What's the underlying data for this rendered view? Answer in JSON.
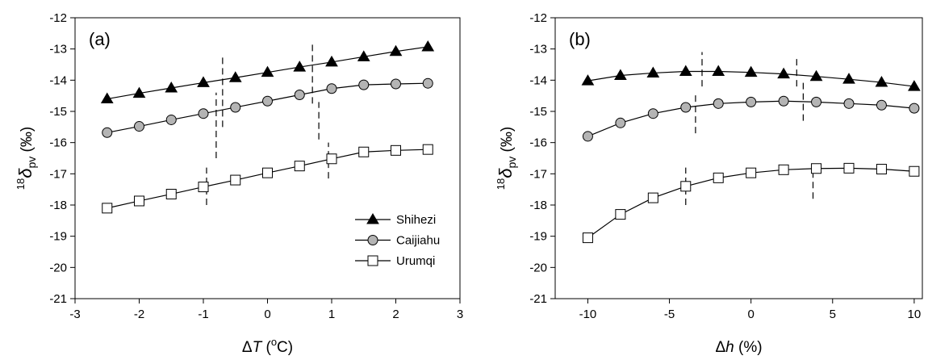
{
  "chart_data": [
    {
      "type": "line",
      "panel_label": "(a)",
      "xlabel": {
        "prefix": "Δ",
        "var": "T",
        "suffix": " (",
        "sup": "o",
        "unit": "C)"
      },
      "ylabel": {
        "sup": "18",
        "sym": "δ",
        "sub": "pv",
        "unit": " (‰)"
      },
      "xlim": [
        -3,
        3
      ],
      "ylim": [
        -21,
        -12
      ],
      "xticks": [
        -3,
        -2,
        -1,
        0,
        1,
        2,
        3
      ],
      "xtick_labels": [
        "-3",
        "-2",
        "-1",
        "0",
        "1",
        "2",
        "3"
      ],
      "yticks": [
        -21,
        -20,
        -19,
        -18,
        -17,
        -16,
        -15,
        -14,
        -13,
        -12
      ],
      "ytick_labels": [
        "-21",
        "-20",
        "-19",
        "-18",
        "-17",
        "-16",
        "-15",
        "-14",
        "-13",
        "-12"
      ],
      "grid": false,
      "legend": "lower-right",
      "x": [
        -2.5,
        -2,
        -1.5,
        -1,
        -0.5,
        0,
        0.5,
        1,
        1.5,
        2,
        2.5
      ],
      "series": [
        {
          "name": "Shihezi",
          "marker": "triangle",
          "values": [
            -14.6,
            -14.42,
            -14.25,
            -14.08,
            -13.92,
            -13.75,
            -13.58,
            -13.42,
            -13.25,
            -13.08,
            -12.93
          ]
        },
        {
          "name": "Caijiahu",
          "marker": "circle",
          "values": [
            -15.68,
            -15.48,
            -15.27,
            -15.07,
            -14.87,
            -14.67,
            -14.47,
            -14.27,
            -14.15,
            -14.12,
            -14.1
          ]
        },
        {
          "name": "Urumqi",
          "marker": "square",
          "values": [
            -18.1,
            -17.87,
            -17.65,
            -17.42,
            -17.2,
            -16.97,
            -16.75,
            -16.52,
            -16.3,
            -16.25,
            -16.22
          ]
        }
      ],
      "dashed_markers": [
        {
          "x": -0.7,
          "y": [
            -15.5,
            -13.25
          ]
        },
        {
          "x": 0.7,
          "y": [
            -14.75,
            -12.85
          ]
        },
        {
          "x": -0.8,
          "y": [
            -16.5,
            -14.4
          ]
        },
        {
          "x": 0.8,
          "y": [
            -15.9,
            -14.7
          ]
        },
        {
          "x": -0.95,
          "y": [
            -18.0,
            -16.8
          ]
        },
        {
          "x": 0.95,
          "y": [
            -17.15,
            -16.0
          ]
        }
      ]
    },
    {
      "type": "line",
      "panel_label": "(b)",
      "xlabel": {
        "prefix": "Δ",
        "var": "h",
        "suffix": " (%)",
        "sup": "",
        "unit": ""
      },
      "ylabel": {
        "sup": "18",
        "sym": "δ",
        "sub": "pv",
        "unit": " (‰)"
      },
      "xlim": [
        -12,
        10.5
      ],
      "ylim": [
        -21,
        -12
      ],
      "xticks": [
        -10,
        -5,
        0,
        5,
        10
      ],
      "xtick_labels": [
        "-10",
        "-5",
        "0",
        "5",
        "10"
      ],
      "yticks": [
        -21,
        -20,
        -19,
        -18,
        -17,
        -16,
        -15,
        -14,
        -13,
        -12
      ],
      "ytick_labels": [
        "-21",
        "-20",
        "-19",
        "-18",
        "-17",
        "-16",
        "-15",
        "-14",
        "-13",
        "-12"
      ],
      "grid": false,
      "x": [
        -10,
        -8,
        -6,
        -4,
        -2,
        0,
        2,
        4,
        6,
        8,
        10
      ],
      "series": [
        {
          "name": "Shihezi",
          "marker": "triangle",
          "values": [
            -14.02,
            -13.85,
            -13.77,
            -13.72,
            -13.72,
            -13.75,
            -13.8,
            -13.88,
            -13.97,
            -14.07,
            -14.2
          ]
        },
        {
          "name": "Caijiahu",
          "marker": "circle",
          "values": [
            -15.8,
            -15.37,
            -15.07,
            -14.87,
            -14.75,
            -14.7,
            -14.67,
            -14.7,
            -14.75,
            -14.8,
            -14.9
          ]
        },
        {
          "name": "Urumqi",
          "marker": "square",
          "values": [
            -19.05,
            -18.3,
            -17.77,
            -17.4,
            -17.13,
            -16.97,
            -16.87,
            -16.83,
            -16.82,
            -16.85,
            -16.92
          ]
        }
      ],
      "dashed_markers": [
        {
          "x": -3,
          "y": [
            -14.2,
            -13.1
          ]
        },
        {
          "x": 2.8,
          "y": [
            -14.2,
            -13.2
          ]
        },
        {
          "x": -3.4,
          "y": [
            -15.7,
            -14.4
          ]
        },
        {
          "x": 3.2,
          "y": [
            -15.3,
            -14.0
          ]
        },
        {
          "x": -4,
          "y": [
            -18.0,
            -16.8
          ]
        },
        {
          "x": 3.8,
          "y": [
            -17.8,
            -16.8
          ]
        }
      ]
    }
  ]
}
